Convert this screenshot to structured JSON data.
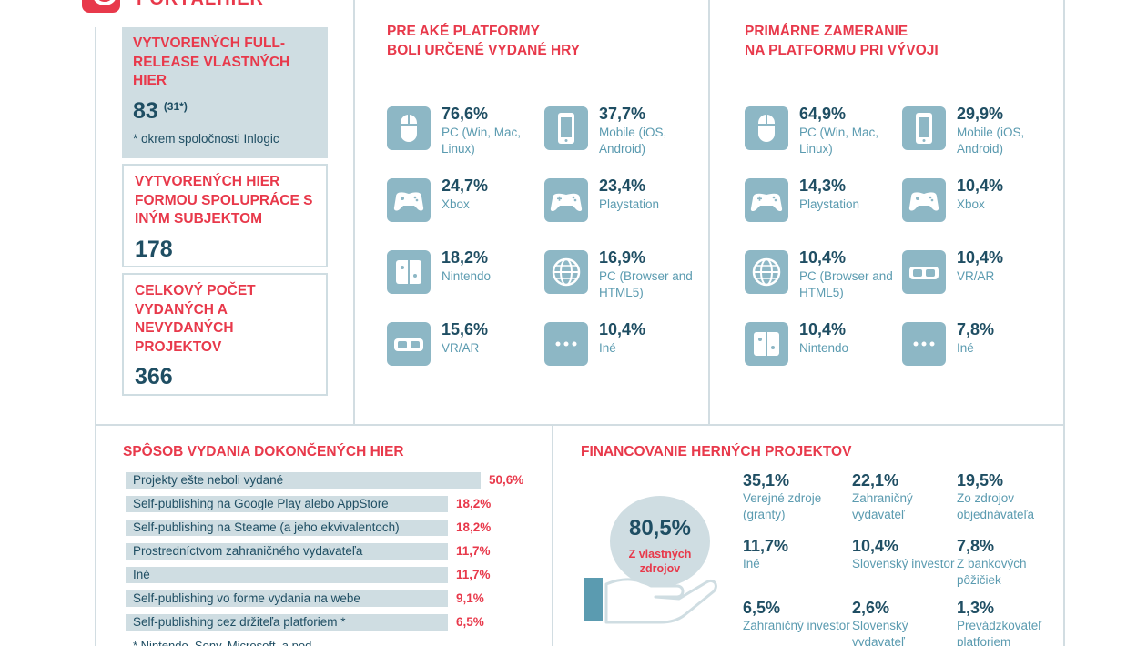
{
  "header": {
    "logo_text": "PORTÁLHIER"
  },
  "stats": [
    {
      "title": "VYTVORENÝCH FULL-RELEASE VLASTNÝCH HIER",
      "value": "83",
      "sup": "(31*)",
      "note": "* okrem spoločnosti Inlogic"
    },
    {
      "title": "VYTVORENÝCH HIER FORMOU SPOLUPRÁCE S INÝM SUBJEKTOM",
      "value": "178"
    },
    {
      "title": "CELKOVÝ POČET VYDANÝCH A NEVYDANÝCH PROJEKTOV",
      "value": "366"
    }
  ],
  "platforms_released": {
    "title_line1": "PRE AKÉ PLATFORMY",
    "title_line2": "BOLI URČENÉ VYDANÉ HRY",
    "items": [
      {
        "icon": "mouse-icon",
        "pct": "76,6%",
        "label": "PC (Win, Mac, Linux)"
      },
      {
        "icon": "mobile-icon",
        "pct": "37,7%",
        "label": "Mobile (iOS, Android)"
      },
      {
        "icon": "xbox-controller-icon",
        "pct": "24,7%",
        "label": "Xbox"
      },
      {
        "icon": "playstation-controller-icon",
        "pct": "23,4%",
        "label": "Playstation"
      },
      {
        "icon": "nintendo-switch-icon",
        "pct": "18,2%",
        "label": "Nintendo"
      },
      {
        "icon": "globe-icon",
        "pct": "16,9%",
        "label": "PC (Browser and HTML5)"
      },
      {
        "icon": "vr-headset-icon",
        "pct": "15,6%",
        "label": "VR/AR"
      },
      {
        "icon": "more-icon",
        "pct": "10,4%",
        "label": "Iné"
      }
    ]
  },
  "platforms_focus": {
    "title_line1": "PRIMÁRNE ZAMERANIE",
    "title_line2": "NA PLATFORMU PRI VÝVOJI",
    "items": [
      {
        "icon": "mouse-icon",
        "pct": "64,9%",
        "label": "PC (Win, Mac, Linux)"
      },
      {
        "icon": "mobile-icon",
        "pct": "29,9%",
        "label": "Mobile (iOS, Android)"
      },
      {
        "icon": "playstation-controller-icon",
        "pct": "14,3%",
        "label": "Playstation"
      },
      {
        "icon": "xbox-controller-icon",
        "pct": "10,4%",
        "label": "Xbox"
      },
      {
        "icon": "globe-icon",
        "pct": "10,4%",
        "label": "PC (Browser and HTML5)"
      },
      {
        "icon": "vr-headset-icon",
        "pct": "10,4%",
        "label": "VR/AR"
      },
      {
        "icon": "nintendo-switch-icon",
        "pct": "10,4%",
        "label": "Nintendo"
      },
      {
        "icon": "more-icon",
        "pct": "7,8%",
        "label": "Iné"
      }
    ]
  },
  "release_method": {
    "title": "SPÔSOB VYDANIA DOKONČENÝCH HIER",
    "footnote": "* Nintendo, Sony, Microsoft, a pod."
  },
  "financing": {
    "title": "FINANCOVANIE HERNÝCH PROJEKTOV",
    "coin_pct": "80,5%",
    "coin_label_1": "Z vlastných",
    "coin_label_2": "zdrojov",
    "items": [
      {
        "pct": "35,1%",
        "label": "Verejné zdroje (granty)"
      },
      {
        "pct": "22,1%",
        "label": "Zahraničný vydavateľ"
      },
      {
        "pct": "19,5%",
        "label": "Zo zdrojov objednávateľa"
      },
      {
        "pct": "11,7%",
        "label": "Iné"
      },
      {
        "pct": "10,4%",
        "label": "Slovenský investor"
      },
      {
        "pct": "7,8%",
        "label": "Z bankových pôžičiek"
      },
      {
        "pct": "6,5%",
        "label": "Zahraničný investor"
      },
      {
        "pct": "2,6%",
        "label": "Slovenský vydavateľ"
      },
      {
        "pct": "1,3%",
        "label": "Prevádzkovateľ platforiem"
      }
    ]
  },
  "chart_data": {
    "type": "bar",
    "title": "SPÔSOB VYDANIA DOKONČENÝCH HIER",
    "categories": [
      "Projekty ešte neboli vydané",
      "Self-publishing na Google Play alebo AppStore",
      "Self-publishing na Steame (a jeho ekvivalentoch)",
      "Prostredníctvom zahraničného vydavateľa",
      "Iné",
      "Self-publishing vo forme vydania na webe",
      "Self-publishing cez držiteľa platforiem *"
    ],
    "values": [
      50.6,
      18.2,
      18.2,
      11.7,
      11.7,
      9.1,
      6.5
    ],
    "value_labels": [
      "50,6%",
      "18,2%",
      "18,2%",
      "11,7%",
      "11,7%",
      "9,1%",
      "6,5%"
    ],
    "orientation": "horizontal",
    "colors": {
      "bar": "#cfdde2",
      "value": "#e8394b",
      "label": "#1f4e63"
    }
  }
}
